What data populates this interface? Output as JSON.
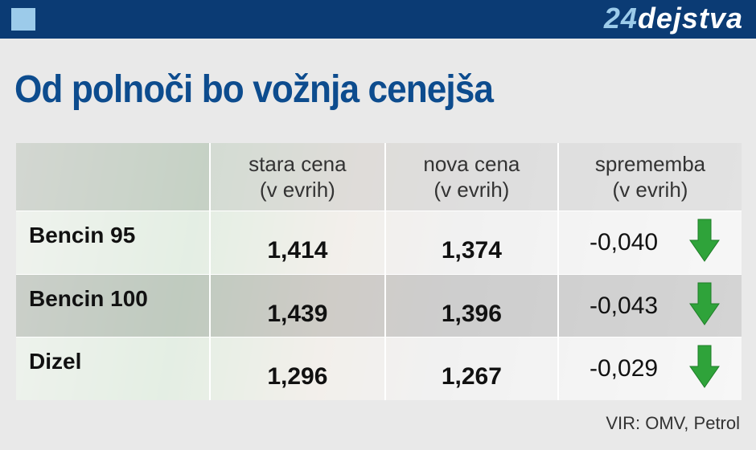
{
  "header": {
    "brand_number": "24",
    "brand_word": "dejstva"
  },
  "title": "Od polnoči bo vožnja cenejša",
  "table": {
    "columns": [
      [
        "stara cena",
        "(v evrih)"
      ],
      [
        "nova cena",
        "(v evrih)"
      ],
      [
        "sprememba",
        "(v evrih)"
      ]
    ],
    "rows": [
      [
        "Bencin 95",
        "1,414",
        "1,374",
        "-0,040"
      ],
      [
        "Bencin 100",
        "1,439",
        "1,396",
        "-0,043"
      ],
      [
        "Dizel",
        "1,296",
        "1,267",
        "-0,029"
      ]
    ]
  },
  "source": "VIR: OMV, Petrol"
}
